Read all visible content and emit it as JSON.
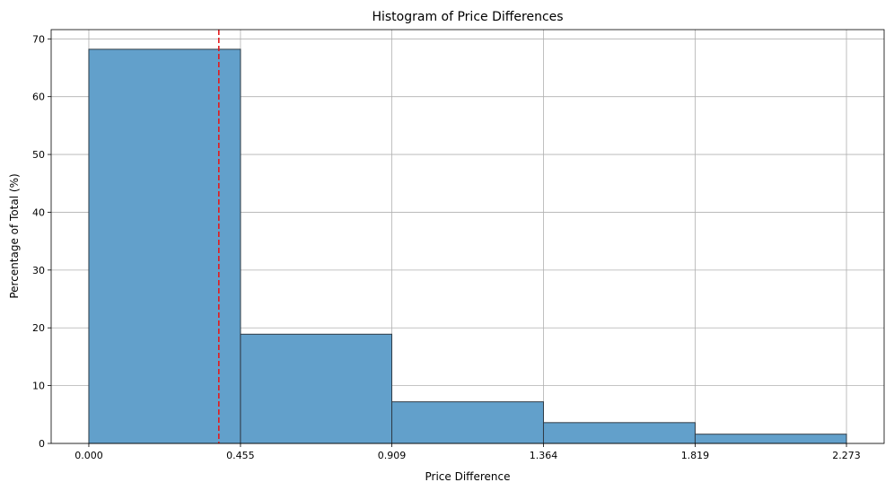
{
  "chart_data": {
    "type": "bar",
    "title": "Histogram of Price Differences",
    "xlabel": "Price Difference",
    "ylabel": "Percentage of Total (%)",
    "bin_edges": [
      0.0,
      0.455,
      0.909,
      1.364,
      1.819,
      2.273
    ],
    "x_tick_labels": [
      "0.000",
      "0.455",
      "0.909",
      "1.364",
      "1.819",
      "2.273"
    ],
    "values": [
      68.2,
      18.9,
      7.2,
      3.6,
      1.6
    ],
    "y_ticks": [
      0,
      10,
      20,
      30,
      40,
      50,
      60,
      70
    ],
    "xlim": [
      -0.113,
      2.386
    ],
    "ylim": [
      0,
      71.6
    ],
    "vline_x": 0.39,
    "grid": true,
    "colors": {
      "bar_fill": "#62a0cb",
      "bar_edge": "#2f3b46",
      "vline": "#e41a1c",
      "grid": "#b0b0b0"
    }
  }
}
